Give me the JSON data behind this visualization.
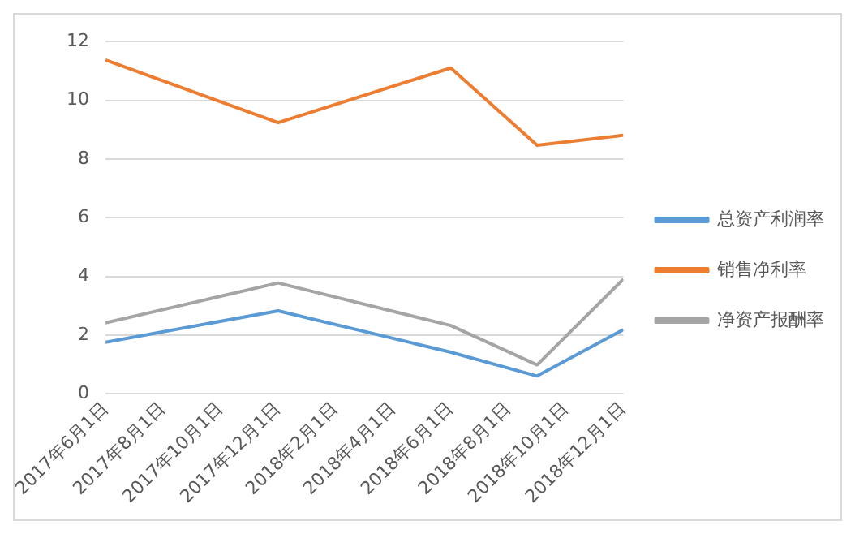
{
  "chart_data": {
    "type": "line",
    "x": [
      "2017-06-01",
      "2017-12-01",
      "2018-06-01",
      "2018-09-01",
      "2018-12-01"
    ],
    "series": [
      {
        "name": "总资产利润率",
        "color": "#5b9bd5",
        "values": [
          1.76,
          2.83,
          1.42,
          0.61,
          2.19
        ]
      },
      {
        "name": "销售净利率",
        "color": "#ed7d31",
        "values": [
          11.37,
          9.24,
          11.1,
          8.47,
          8.81
        ]
      },
      {
        "name": "净资产报酬率",
        "color": "#a5a5a5",
        "values": [
          2.42,
          3.78,
          2.33,
          0.99,
          3.91
        ]
      }
    ],
    "xlim": [
      "2017-06-01",
      "2018-12-01"
    ],
    "xticks": [
      {
        "value": "2017-06-01",
        "label": "2017年6月1日"
      },
      {
        "value": "2017-08-01",
        "label": "2017年8月1日"
      },
      {
        "value": "2017-10-01",
        "label": "2017年10月1日"
      },
      {
        "value": "2017-12-01",
        "label": "2017年12月1日"
      },
      {
        "value": "2018-02-01",
        "label": "2018年2月1日"
      },
      {
        "value": "2018-04-01",
        "label": "2018年4月1日"
      },
      {
        "value": "2018-06-01",
        "label": "2018年6月1日"
      },
      {
        "value": "2018-08-01",
        "label": "2018年8月1日"
      },
      {
        "value": "2018-10-01",
        "label": "2018年10月1日"
      },
      {
        "value": "2018-12-01",
        "label": "2018年12月1日"
      }
    ],
    "ylim": [
      0,
      12
    ],
    "yticks": [
      0,
      2,
      4,
      6,
      8,
      10,
      12
    ],
    "grid": "y",
    "legend": "right",
    "marker": "none",
    "line_style": "solid"
  }
}
